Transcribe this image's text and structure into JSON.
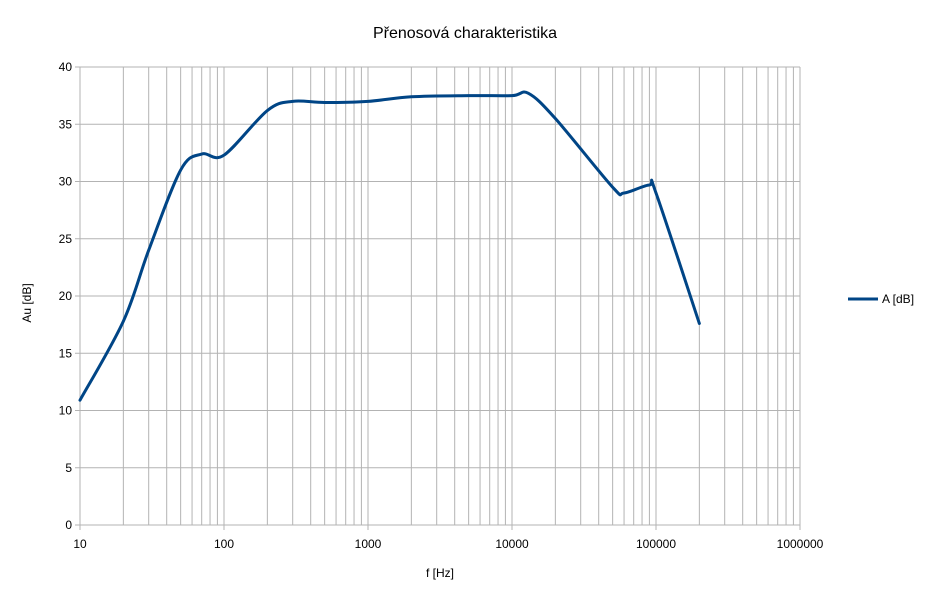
{
  "chart_data": {
    "type": "line",
    "title": "Přenosová charakteristika",
    "xlabel": "f [Hz]",
    "ylabel": "Au [dB]",
    "x_scale": "log",
    "xlim": [
      10,
      1000000
    ],
    "ylim": [
      0,
      40
    ],
    "x_ticks": [
      "10",
      "100",
      "1000",
      "10000",
      "100000",
      "1000000"
    ],
    "y_ticks": [
      "0",
      "5",
      "10",
      "15",
      "20",
      "25",
      "30",
      "35",
      "40"
    ],
    "grid": true,
    "legend_position": "right",
    "series": [
      {
        "name": "A [dB]",
        "color": "#004586",
        "x": [
          10,
          20,
          30,
          50,
          70,
          100,
          200,
          300,
          500,
          1000,
          2000,
          5000,
          10000,
          13000,
          20000,
          50000,
          60000,
          90000,
          100000,
          200000
        ],
        "y": [
          10.9,
          17.8,
          24.0,
          31.0,
          32.4,
          32.3,
          36.2,
          37.0,
          36.9,
          37.0,
          37.4,
          37.5,
          37.5,
          37.7,
          35.5,
          29.5,
          29.0,
          29.7,
          29.0,
          17.6
        ]
      }
    ]
  }
}
